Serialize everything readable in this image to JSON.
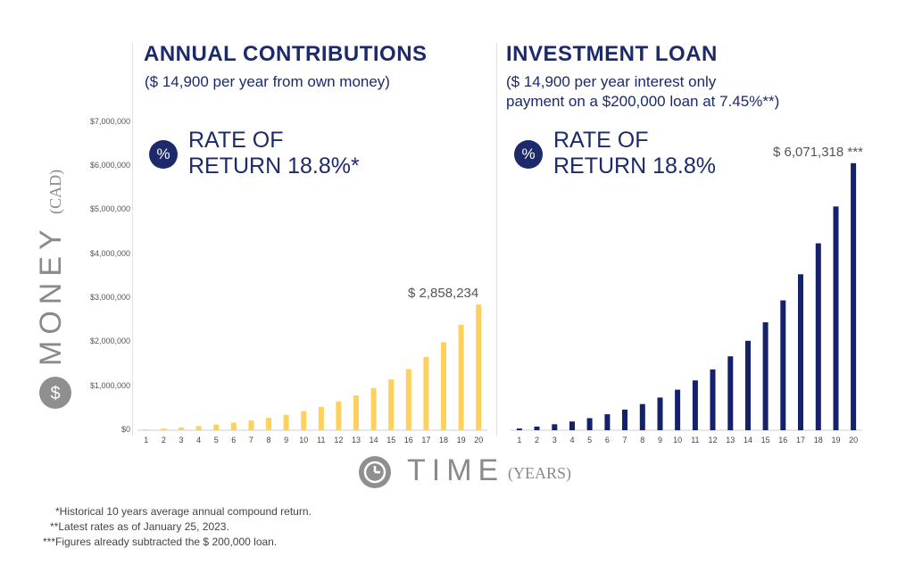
{
  "left_panel": {
    "title": "ANNUAL CONTRIBUTIONS",
    "subtitle_line1": "($ 14,900 per year from own money)",
    "rate_line1": "RATE OF",
    "rate_line2": "RETURN 18.8%*",
    "rate_icon": "%",
    "annotation": "$ 2,858,234"
  },
  "right_panel": {
    "title": "INVESTMENT LOAN",
    "subtitle_line1": "($ 14,900 per year interest only",
    "subtitle_line2": "payment on a $200,000 loan at 7.45%**)",
    "rate_line1": "RATE OF",
    "rate_line2": "RETURN 18.8%",
    "rate_icon": "%",
    "annotation": "$ 6,071,318 ***"
  },
  "y_axis": {
    "word": "MONEY",
    "unit": "(CAD)",
    "icon": "dollar-icon",
    "ticks": [
      "$7,000,000",
      "$6,000,000",
      "$5,000,000",
      "$4,000,000",
      "$3,000,000",
      "$2,000,000",
      "$1,000,000",
      "$0"
    ]
  },
  "x_axis": {
    "word": "TIME",
    "unit": "(YEARS)",
    "icon": "clock-icon"
  },
  "footnotes": [
    "*Historical 10 years average annual compound return.",
    "**Latest rates as of January 25, 2023.",
    "***Figures already subtracted the $ 200,000 loan."
  ],
  "colors": {
    "left_bars": "#ffd15a",
    "right_bars": "#14216b",
    "text": "#1c2a6b",
    "grey": "#8f8f8f"
  },
  "chart_data": [
    {
      "type": "bar",
      "categories": [
        "1",
        "2",
        "3",
        "4",
        "5",
        "6",
        "7",
        "8",
        "9",
        "10",
        "11",
        "12",
        "13",
        "14",
        "15",
        "16",
        "17",
        "18",
        "19",
        "20"
      ],
      "values": [
        17700,
        38700,
        63700,
        93400,
        128700,
        170600,
        220400,
        279600,
        349900,
        433400,
        532600,
        650500,
        790600,
        957000,
        1154700,
        1389600,
        1668700,
        2000300,
        2394300,
        2858234
      ],
      "ylim": [
        0,
        7000000
      ],
      "color": "#ffd15a"
    },
    {
      "type": "bar",
      "categories": [
        "1",
        "2",
        "3",
        "4",
        "5",
        "6",
        "7",
        "8",
        "9",
        "10",
        "11",
        "12",
        "13",
        "14",
        "15",
        "16",
        "17",
        "18",
        "19",
        "20"
      ],
      "values": [
        37600,
        82300,
        135400,
        198500,
        273500,
        362600,
        468400,
        594100,
        743500,
        921000,
        1131800,
        1382300,
        1679900,
        2033400,
        2453400,
        2952400,
        3545200,
        4249400,
        5086000,
        6071318
      ],
      "ylim": [
        0,
        7000000
      ],
      "color": "#14216b"
    }
  ]
}
